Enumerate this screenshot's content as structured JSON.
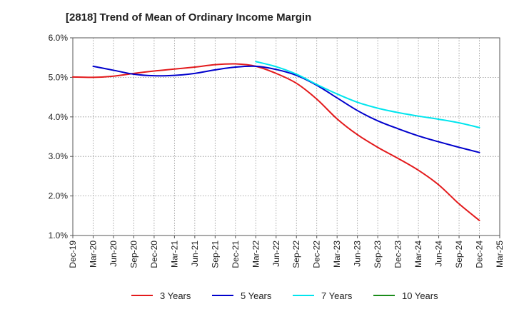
{
  "chart_data": {
    "type": "line",
    "title": "[2818]  Trend of Mean of Ordinary Income Margin",
    "xlabel": "",
    "ylabel": "",
    "x_ticks": [
      "Dec-19",
      "Mar-20",
      "Jun-20",
      "Sep-20",
      "Dec-20",
      "Mar-21",
      "Jun-21",
      "Sep-21",
      "Dec-21",
      "Mar-22",
      "Jun-22",
      "Sep-22",
      "Dec-22",
      "Mar-23",
      "Jun-23",
      "Sep-23",
      "Dec-23",
      "Mar-24",
      "Jun-24",
      "Sep-24",
      "Dec-24",
      "Mar-25"
    ],
    "y_ticks": [
      "1.0%",
      "2.0%",
      "3.0%",
      "4.0%",
      "5.0%",
      "6.0%"
    ],
    "ylim": [
      1.0,
      6.0
    ],
    "y_unit": "%",
    "grid": true,
    "legend_position": "bottom",
    "series": [
      {
        "name": "3 Years",
        "color": "#e31a1c",
        "points": [
          [
            "Dec-19",
            5.01
          ],
          [
            "Mar-20",
            5.0
          ],
          [
            "Jun-20",
            5.03
          ],
          [
            "Sep-20",
            5.1
          ],
          [
            "Dec-20",
            5.16
          ],
          [
            "Mar-21",
            5.21
          ],
          [
            "Jun-21",
            5.26
          ],
          [
            "Sep-21",
            5.32
          ],
          [
            "Dec-21",
            5.34
          ],
          [
            "Mar-22",
            5.28
          ],
          [
            "Jun-22",
            5.1
          ],
          [
            "Sep-22",
            4.85
          ],
          [
            "Dec-22",
            4.45
          ],
          [
            "Mar-23",
            3.95
          ],
          [
            "Jun-23",
            3.55
          ],
          [
            "Sep-23",
            3.23
          ],
          [
            "Dec-23",
            2.95
          ],
          [
            "Mar-24",
            2.65
          ],
          [
            "Jun-24",
            2.28
          ],
          [
            "Sep-24",
            1.8
          ],
          [
            "Dec-24",
            1.38
          ]
        ]
      },
      {
        "name": "5 Years",
        "color": "#0000cc",
        "points": [
          [
            "Mar-20",
            5.28
          ],
          [
            "Jun-20",
            5.18
          ],
          [
            "Sep-20",
            5.08
          ],
          [
            "Dec-20",
            5.04
          ],
          [
            "Mar-21",
            5.05
          ],
          [
            "Jun-21",
            5.1
          ],
          [
            "Sep-21",
            5.19
          ],
          [
            "Dec-21",
            5.26
          ],
          [
            "Mar-22",
            5.28
          ],
          [
            "Jun-22",
            5.2
          ],
          [
            "Sep-22",
            5.05
          ],
          [
            "Dec-22",
            4.8
          ],
          [
            "Mar-23",
            4.48
          ],
          [
            "Jun-23",
            4.16
          ],
          [
            "Sep-23",
            3.9
          ],
          [
            "Dec-23",
            3.7
          ],
          [
            "Mar-24",
            3.52
          ],
          [
            "Jun-24",
            3.37
          ],
          [
            "Sep-24",
            3.23
          ],
          [
            "Dec-24",
            3.1
          ]
        ]
      },
      {
        "name": "7 Years",
        "color": "#00e5ee",
        "points": [
          [
            "Mar-22",
            5.4
          ],
          [
            "Jun-22",
            5.27
          ],
          [
            "Sep-22",
            5.08
          ],
          [
            "Dec-22",
            4.82
          ],
          [
            "Mar-23",
            4.58
          ],
          [
            "Jun-23",
            4.37
          ],
          [
            "Sep-23",
            4.22
          ],
          [
            "Dec-23",
            4.11
          ],
          [
            "Mar-24",
            4.02
          ],
          [
            "Jun-24",
            3.94
          ],
          [
            "Sep-24",
            3.85
          ],
          [
            "Dec-24",
            3.73
          ]
        ]
      },
      {
        "name": "10 Years",
        "color": "#1a8c1a",
        "points": []
      }
    ]
  }
}
